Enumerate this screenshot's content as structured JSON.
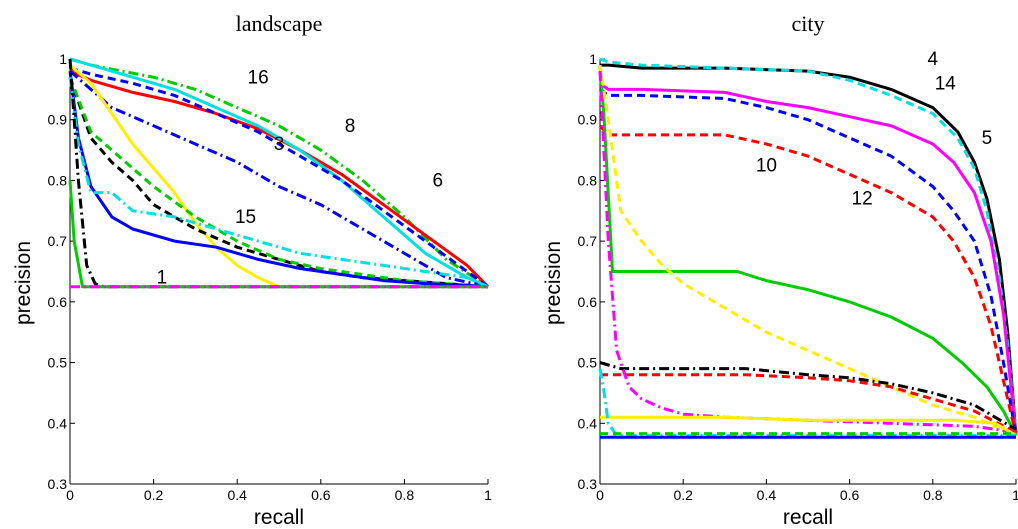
{
  "chart_data": [
    {
      "type": "line",
      "title": "landscape",
      "xlabel": "recall",
      "ylabel": "precision",
      "xlim": [
        0,
        1
      ],
      "ylim": [
        0.3,
        1
      ],
      "xticks": [
        "0",
        "0.2",
        "0.4",
        "0.6",
        "0.8",
        "1"
      ],
      "yticks": [
        "0.3",
        "0.4",
        "0.5",
        "0.6",
        "0.7",
        "0.8",
        "0.9",
        "1"
      ],
      "grid": false,
      "series": [
        {
          "color": "#00cc00",
          "style": "dash-dot",
          "x": [
            0,
            0.05,
            0.2,
            0.3,
            0.4,
            0.5,
            0.6,
            0.7,
            0.8,
            0.9,
            1
          ],
          "y": [
            1,
            0.99,
            0.97,
            0.95,
            0.92,
            0.89,
            0.85,
            0.8,
            0.74,
            0.67,
            0.625
          ]
        },
        {
          "color": "#ff0000",
          "style": "solid",
          "x": [
            0,
            0.05,
            0.15,
            0.25,
            0.35,
            0.45,
            0.55,
            0.65,
            0.75,
            0.85,
            0.95,
            1
          ],
          "y": [
            0.98,
            0.965,
            0.945,
            0.93,
            0.91,
            0.885,
            0.85,
            0.81,
            0.76,
            0.71,
            0.66,
            0.625
          ]
        },
        {
          "color": "#00e0e0",
          "style": "solid",
          "x": [
            0,
            0.05,
            0.15,
            0.25,
            0.35,
            0.45,
            0.55,
            0.65,
            0.75,
            0.85,
            0.95,
            1
          ],
          "y": [
            1,
            0.99,
            0.97,
            0.95,
            0.92,
            0.89,
            0.85,
            0.8,
            0.74,
            0.68,
            0.64,
            0.625
          ]
        },
        {
          "color": "#0000ff",
          "style": "dash",
          "x": [
            0,
            0.05,
            0.15,
            0.25,
            0.35,
            0.45,
            0.55,
            0.65,
            0.75,
            0.85,
            0.95,
            1
          ],
          "y": [
            0.985,
            0.975,
            0.96,
            0.94,
            0.91,
            0.88,
            0.84,
            0.8,
            0.75,
            0.7,
            0.65,
            0.625
          ]
        },
        {
          "color": "#0000ff",
          "style": "dash-dot",
          "x": [
            0,
            0.1,
            0.2,
            0.3,
            0.4,
            0.5,
            0.6,
            0.7,
            0.8,
            0.9,
            1
          ],
          "y": [
            0.98,
            0.92,
            0.89,
            0.86,
            0.83,
            0.79,
            0.76,
            0.72,
            0.68,
            0.64,
            0.625
          ]
        },
        {
          "color": "#ffee00",
          "style": "solid",
          "x": [
            0,
            0.05,
            0.1,
            0.15,
            0.2,
            0.25,
            0.3,
            0.35,
            0.4,
            0.45,
            0.5
          ],
          "y": [
            0.99,
            0.96,
            0.91,
            0.86,
            0.82,
            0.78,
            0.73,
            0.69,
            0.66,
            0.64,
            0.625
          ]
        },
        {
          "color": "#000000",
          "style": "dash",
          "x": [
            0,
            0.05,
            0.1,
            0.15,
            0.2,
            0.25,
            0.3,
            0.4,
            0.5,
            0.6,
            0.7,
            0.8,
            0.9,
            1
          ],
          "y": [
            0.97,
            0.87,
            0.83,
            0.8,
            0.76,
            0.74,
            0.72,
            0.69,
            0.67,
            0.65,
            0.64,
            0.635,
            0.63,
            0.625
          ]
        },
        {
          "color": "#00cc00",
          "style": "dash",
          "x": [
            0,
            0.05,
            0.1,
            0.15,
            0.2,
            0.3,
            0.4,
            0.5,
            0.6,
            0.7,
            0.8,
            0.9,
            1
          ],
          "y": [
            0.97,
            0.88,
            0.85,
            0.82,
            0.79,
            0.74,
            0.7,
            0.67,
            0.655,
            0.645,
            0.635,
            0.63,
            0.625
          ]
        },
        {
          "color": "#0000ff",
          "style": "solid",
          "x": [
            0,
            0.02,
            0.05,
            0.1,
            0.15,
            0.25,
            0.35,
            0.45,
            0.55,
            0.65,
            0.75,
            0.85,
            0.95,
            1
          ],
          "y": [
            0.98,
            0.87,
            0.79,
            0.74,
            0.72,
            0.7,
            0.69,
            0.67,
            0.655,
            0.645,
            0.635,
            0.63,
            0.627,
            0.625
          ]
        },
        {
          "color": "#00e0e0",
          "style": "dash-dot",
          "x": [
            0,
            0.02,
            0.05,
            0.1,
            0.15,
            0.25,
            0.35,
            0.45,
            0.55,
            0.65,
            0.75,
            0.85,
            0.95,
            1
          ],
          "y": [
            0.97,
            0.86,
            0.78,
            0.78,
            0.75,
            0.74,
            0.72,
            0.7,
            0.68,
            0.67,
            0.66,
            0.65,
            0.64,
            0.625
          ]
        },
        {
          "color": "#000000",
          "style": "dash-dot",
          "x": [
            0,
            0.02,
            0.04,
            0.06,
            0.08,
            1
          ],
          "y": [
            1,
            0.8,
            0.66,
            0.63,
            0.625,
            0.625
          ]
        },
        {
          "color": "#00cc00",
          "style": "solid",
          "x": [
            0,
            0.01,
            0.03,
            1
          ],
          "y": [
            0.8,
            0.7,
            0.625,
            0.625
          ]
        },
        {
          "color": "#ff00ff",
          "style": "dash-dot",
          "x": [
            0,
            1
          ],
          "y": [
            0.625,
            0.625
          ]
        }
      ],
      "annotations": [
        {
          "text": "16",
          "x": 0.45,
          "y": 0.96
        },
        {
          "text": "8",
          "x": 0.67,
          "y": 0.88
        },
        {
          "text": "3",
          "x": 0.5,
          "y": 0.85
        },
        {
          "text": "6",
          "x": 0.88,
          "y": 0.79
        },
        {
          "text": "15",
          "x": 0.42,
          "y": 0.73
        },
        {
          "text": "1",
          "x": 0.22,
          "y": 0.63
        }
      ]
    },
    {
      "type": "line",
      "title": "city",
      "xlabel": "recall",
      "ylabel": "precision",
      "xlim": [
        0,
        1
      ],
      "ylim": [
        0.3,
        1
      ],
      "xticks": [
        "0",
        "0.2",
        "0.4",
        "0.6",
        "0.8",
        "1"
      ],
      "yticks": [
        "0.3",
        "0.4",
        "0.5",
        "0.6",
        "0.7",
        "0.8",
        "0.9",
        "1"
      ],
      "grid": false,
      "series": [
        {
          "color": "#000000",
          "style": "solid",
          "x": [
            0,
            0.02,
            0.1,
            0.3,
            0.5,
            0.6,
            0.7,
            0.8,
            0.86,
            0.9,
            0.93,
            0.96,
            0.98,
            1
          ],
          "y": [
            0.99,
            0.99,
            0.985,
            0.985,
            0.98,
            0.97,
            0.95,
            0.92,
            0.88,
            0.83,
            0.77,
            0.67,
            0.55,
            0.38
          ]
        },
        {
          "color": "#00e0e0",
          "style": "dash",
          "x": [
            0,
            0.02,
            0.1,
            0.3,
            0.5,
            0.6,
            0.7,
            0.8,
            0.86,
            0.9,
            0.93,
            0.96,
            0.98,
            1
          ],
          "y": [
            1,
            0.995,
            0.99,
            0.985,
            0.98,
            0.965,
            0.94,
            0.91,
            0.87,
            0.82,
            0.75,
            0.64,
            0.53,
            0.38
          ]
        },
        {
          "color": "#ff00ff",
          "style": "solid",
          "x": [
            0,
            0.02,
            0.1,
            0.3,
            0.4,
            0.5,
            0.6,
            0.7,
            0.8,
            0.85,
            0.9,
            0.94,
            0.97,
            1
          ],
          "y": [
            0.96,
            0.95,
            0.95,
            0.945,
            0.93,
            0.92,
            0.905,
            0.89,
            0.86,
            0.83,
            0.78,
            0.7,
            0.58,
            0.38
          ]
        },
        {
          "color": "#0000ff",
          "style": "dash",
          "x": [
            0,
            0.02,
            0.1,
            0.3,
            0.4,
            0.5,
            0.6,
            0.7,
            0.8,
            0.85,
            0.9,
            0.94,
            0.97,
            1
          ],
          "y": [
            0.95,
            0.94,
            0.94,
            0.935,
            0.92,
            0.9,
            0.87,
            0.84,
            0.79,
            0.75,
            0.7,
            0.61,
            0.5,
            0.38
          ]
        },
        {
          "color": "#ff0000",
          "style": "dash",
          "x": [
            0,
            0.02,
            0.1,
            0.3,
            0.4,
            0.5,
            0.6,
            0.7,
            0.8,
            0.85,
            0.9,
            0.94,
            0.97,
            1
          ],
          "y": [
            0.89,
            0.875,
            0.875,
            0.875,
            0.86,
            0.84,
            0.81,
            0.78,
            0.74,
            0.7,
            0.64,
            0.56,
            0.47,
            0.38
          ]
        },
        {
          "color": "#00cc00",
          "style": "solid",
          "x": [
            0,
            0.01,
            0.03,
            0.1,
            0.2,
            0.33,
            0.4,
            0.5,
            0.6,
            0.7,
            0.8,
            0.87,
            0.93,
            0.97,
            1
          ],
          "y": [
            0.99,
            0.9,
            0.65,
            0.65,
            0.65,
            0.65,
            0.635,
            0.62,
            0.6,
            0.575,
            0.54,
            0.5,
            0.46,
            0.42,
            0.38
          ]
        },
        {
          "color": "#ffee00",
          "style": "dash",
          "x": [
            0,
            0.02,
            0.05,
            0.1,
            0.15,
            0.2,
            0.3,
            0.4,
            0.5,
            0.6,
            0.7,
            0.8,
            0.9,
            1
          ],
          "y": [
            0.99,
            0.9,
            0.75,
            0.7,
            0.66,
            0.63,
            0.59,
            0.55,
            0.52,
            0.49,
            0.46,
            0.43,
            0.41,
            0.38
          ]
        },
        {
          "color": "#000000",
          "style": "dash-dot",
          "x": [
            0,
            0.05,
            0.2,
            0.35,
            0.5,
            0.6,
            0.7,
            0.8,
            0.9,
            1
          ],
          "y": [
            0.5,
            0.49,
            0.49,
            0.49,
            0.48,
            0.475,
            0.465,
            0.45,
            0.43,
            0.39
          ]
        },
        {
          "color": "#ff0000",
          "style": "dash",
          "x": [
            0,
            0.05,
            0.2,
            0.35,
            0.5,
            0.6,
            0.7,
            0.8,
            0.9,
            1
          ],
          "y": [
            0.48,
            0.48,
            0.48,
            0.48,
            0.475,
            0.47,
            0.46,
            0.44,
            0.42,
            0.385
          ]
        },
        {
          "color": "#ff00ff",
          "style": "dash-dot",
          "x": [
            0,
            0.02,
            0.04,
            0.07,
            0.1,
            0.15,
            0.2,
            0.3,
            0.5,
            0.7,
            0.9,
            1
          ],
          "y": [
            0.98,
            0.7,
            0.52,
            0.46,
            0.44,
            0.425,
            0.415,
            0.41,
            0.405,
            0.4,
            0.395,
            0.385
          ]
        },
        {
          "color": "#ffee00",
          "style": "solid",
          "x": [
            0,
            0.02,
            0.1,
            0.3,
            0.5,
            0.7,
            0.85,
            0.95,
            1
          ],
          "y": [
            0.41,
            0.41,
            0.41,
            0.41,
            0.405,
            0.405,
            0.405,
            0.4,
            0.38
          ]
        },
        {
          "color": "#00e0e0",
          "style": "dash-dot",
          "x": [
            0,
            0.01,
            0.02,
            0.04,
            1
          ],
          "y": [
            0.49,
            0.45,
            0.4,
            0.38,
            0.38
          ]
        },
        {
          "color": "#0000ff",
          "style": "solid",
          "x": [
            0,
            1
          ],
          "y": [
            0.377,
            0.377
          ]
        },
        {
          "color": "#00cc00",
          "style": "dash",
          "x": [
            0,
            1
          ],
          "y": [
            0.383,
            0.383
          ]
        }
      ],
      "annotations": [
        {
          "text": "4",
          "x": 0.8,
          "y": 0.99
        },
        {
          "text": "14",
          "x": 0.83,
          "y": 0.95
        },
        {
          "text": "5",
          "x": 0.93,
          "y": 0.86
        },
        {
          "text": "10",
          "x": 0.4,
          "y": 0.815
        },
        {
          "text": "12",
          "x": 0.63,
          "y": 0.76
        }
      ]
    }
  ]
}
